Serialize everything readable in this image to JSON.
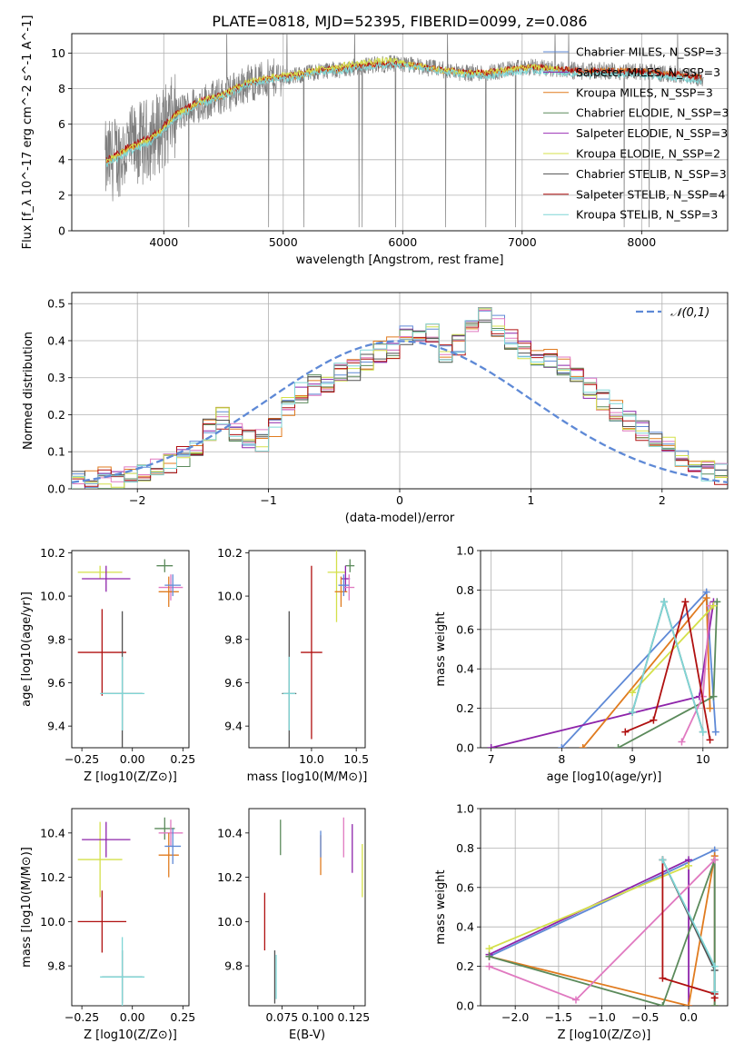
{
  "figure_title": "PLATE=0818, MJD=52395, FIBERID=0099, z=0.086",
  "legend": [
    {
      "name": "Chabrier MILES, N_SSP=3",
      "color": "#5e89d6"
    },
    {
      "name": "Salpeter MILES, N_SSP=3",
      "color": "#8e24aa"
    },
    {
      "name": "Kroupa MILES, N_SSP=3",
      "color": "#e07b1f"
    },
    {
      "name": "Chabrier ELODIE, N_SSP=3",
      "color": "#5b8a5b"
    },
    {
      "name": "Salpeter ELODIE, N_SSP=3",
      "color": "#9b30b4"
    },
    {
      "name": "Kroupa ELODIE, N_SSP=2",
      "color": "#d4e04a"
    },
    {
      "name": "Chabrier STELIB, N_SSP=3",
      "color": "#505050"
    },
    {
      "name": "Salpeter STELIB, N_SSP=4",
      "color": "#b01010"
    },
    {
      "name": "Kroupa STELIB, N_SSP=3",
      "color": "#7fd6d6"
    }
  ],
  "chart_data": [
    {
      "id": "spectrum",
      "type": "line",
      "xlabel": "wavelength [Angstrom, rest frame]",
      "ylabel": "Flux [f_λ 10^-17 erg cm^-2 s^-1 A^-1]",
      "xlim": [
        3230,
        8720
      ],
      "ylim": [
        0,
        11.1
      ],
      "xticks": [
        4000,
        5000,
        6000,
        7000,
        8000
      ],
      "yticks": [
        0,
        2,
        4,
        6,
        8,
        10
      ],
      "grid": true,
      "legend_position": "right",
      "x_range": [
        3510,
        8520
      ],
      "model_series": [
        {
          "name": "Kroupa MILES, N_SSP=3",
          "color": "#e07b1f",
          "x": [
            3520,
            3700,
            3900,
            4100,
            4300,
            4500,
            4700,
            4900,
            5100,
            5300,
            5500,
            5700,
            5900,
            6100,
            6300,
            6500,
            6700,
            6900,
            7100,
            7300,
            7500,
            7700,
            7900,
            8100,
            8300,
            8500
          ],
          "y": [
            3.8,
            4.6,
            5.2,
            6.5,
            7.2,
            7.6,
            8.3,
            8.6,
            8.7,
            9.0,
            9.1,
            9.3,
            9.4,
            9.3,
            9.1,
            8.9,
            8.9,
            9.1,
            9.2,
            9.1,
            9.0,
            9.0,
            9.0,
            8.9,
            8.8,
            8.6
          ]
        },
        {
          "name": "Salpeter STELIB, N_SSP=4",
          "color": "#b01010",
          "x": [
            3520,
            3700,
            3900,
            4100,
            4300,
            4500,
            4700,
            4900,
            5100,
            5300,
            5500,
            5700,
            5900,
            6100,
            6300,
            6500,
            6700,
            6900,
            7100,
            7300,
            7500,
            7700,
            7900,
            8100,
            8300,
            8500
          ],
          "y": [
            4.0,
            4.7,
            5.3,
            6.6,
            7.3,
            7.7,
            8.3,
            8.6,
            8.8,
            9.0,
            9.2,
            9.3,
            9.4,
            9.3,
            9.1,
            8.9,
            8.9,
            9.1,
            9.2,
            9.1,
            9.0,
            9.0,
            9.0,
            8.9,
            8.8,
            8.6
          ]
        },
        {
          "name": "Kroupa ELODIE, N_SSP=2",
          "color": "#d4e04a",
          "x": [
            3520,
            3700,
            3900,
            4100,
            4300,
            4500,
            4700,
            4900,
            5100,
            5300,
            5500,
            5700,
            5900,
            6100,
            6300,
            6500,
            6700,
            6900,
            7100,
            7300
          ],
          "y": [
            3.9,
            4.6,
            5.2,
            6.5,
            7.3,
            7.7,
            8.4,
            8.7,
            8.8,
            9.1,
            9.3,
            9.5,
            9.6,
            9.3,
            9.1,
            8.9,
            8.9,
            9.1,
            9.2,
            9.1
          ]
        },
        {
          "name": "Kroupa STELIB, N_SSP=3",
          "color": "#7fd6d6",
          "x": [
            3520,
            3700,
            3900,
            4100,
            4300,
            4500,
            4700,
            4900,
            5100,
            5300,
            5500,
            5700,
            5900,
            6100,
            6300,
            6500,
            6700,
            6900,
            7100,
            7300,
            7500,
            7700,
            7900,
            8100,
            8300,
            8500
          ],
          "y": [
            3.7,
            4.4,
            5.0,
            6.3,
            7.1,
            7.5,
            8.2,
            8.5,
            8.6,
            8.9,
            9.0,
            9.2,
            9.3,
            9.2,
            9.0,
            8.8,
            8.7,
            8.9,
            9.0,
            8.9,
            8.8,
            8.8,
            8.8,
            8.7,
            8.6,
            8.4
          ]
        }
      ]
    },
    {
      "id": "residuals",
      "type": "step",
      "xlabel": "(data-model)/error",
      "ylabel": "Normed distribution",
      "xlim": [
        -2.5,
        2.5
      ],
      "ylim": [
        0,
        0.53
      ],
      "xticks": [
        -2,
        -1,
        0,
        1,
        2
      ],
      "yticks": [
        0.0,
        0.1,
        0.2,
        0.3,
        0.4,
        0.5
      ],
      "grid": true,
      "legend_position": "top-right",
      "reference_curve": {
        "name": "𝒩(0,1)",
        "color": "#5e89d6"
      },
      "bin_edges_start": -2.5,
      "bin_width": 0.1,
      "histogram_values": [
        0.02,
        0.02,
        0.03,
        0.03,
        0.04,
        0.05,
        0.06,
        0.07,
        0.09,
        0.12,
        0.16,
        0.19,
        0.15,
        0.14,
        0.13,
        0.17,
        0.22,
        0.26,
        0.28,
        0.29,
        0.31,
        0.32,
        0.35,
        0.37,
        0.38,
        0.41,
        0.4,
        0.42,
        0.37,
        0.39,
        0.43,
        0.46,
        0.44,
        0.4,
        0.38,
        0.36,
        0.35,
        0.33,
        0.3,
        0.27,
        0.24,
        0.21,
        0.18,
        0.16,
        0.13,
        0.11,
        0.09,
        0.07,
        0.05,
        0.04
      ],
      "series": [
        {
          "name": "Chabrier MILES",
          "color": "#5e89d6"
        },
        {
          "name": "Salpeter MILES",
          "color": "#8e24aa"
        },
        {
          "name": "Kroupa MILES",
          "color": "#e07b1f"
        },
        {
          "name": "Chabrier ELODIE",
          "color": "#5b8a5b"
        },
        {
          "name": "Salpeter ELODIE",
          "color": "#e079c0"
        },
        {
          "name": "Kroupa ELODIE",
          "color": "#d4e04a"
        },
        {
          "name": "Chabrier STELIB",
          "color": "#505050"
        },
        {
          "name": "Salpeter STELIB",
          "color": "#b01010"
        },
        {
          "name": "Kroupa STELIB",
          "color": "#7fd6d6"
        }
      ]
    },
    {
      "id": "age-vs-Z",
      "type": "errorbar",
      "xlabel": "Z [log10(Z/Z⊙)]",
      "ylabel": "age [log10(age/yr)]",
      "xlim": [
        -0.3,
        0.28
      ],
      "ylim": [
        9.3,
        10.21
      ],
      "xticks": [
        -0.25,
        0.0,
        0.25
      ],
      "yticks": [
        9.4,
        9.6,
        9.8,
        10.0,
        10.2
      ],
      "points": [
        {
          "x": 0.16,
          "y": 10.14,
          "ex": 0.04,
          "ey": 0.03,
          "color": "#5b8a5b"
        },
        {
          "x": -0.16,
          "y": 10.11,
          "ex": 0.11,
          "ey": 0.03,
          "color": "#d4e04a"
        },
        {
          "x": -0.13,
          "y": 10.08,
          "ex": 0.12,
          "ey": 0.06,
          "color": "#8e24aa"
        },
        {
          "x": 0.19,
          "y": 10.04,
          "ex": 0.06,
          "ey": 0.06,
          "color": "#e079c0"
        },
        {
          "x": 0.18,
          "y": 10.02,
          "ex": 0.05,
          "ey": 0.07,
          "color": "#e07b1f"
        },
        {
          "x": 0.2,
          "y": 10.05,
          "ex": 0.04,
          "ey": 0.05,
          "color": "#5e89d6"
        },
        {
          "x": -0.15,
          "y": 9.74,
          "ex": 0.12,
          "ey": 0.2,
          "color": "#b01010"
        },
        {
          "x": -0.05,
          "y": 9.55,
          "ex": 0.1,
          "ey": 0.38,
          "color": "#505050"
        },
        {
          "x": -0.05,
          "y": 9.55,
          "ex": 0.11,
          "ey": 0.17,
          "color": "#7fd6d6"
        }
      ]
    },
    {
      "id": "age-vs-mass",
      "type": "errorbar",
      "xlabel": "mass [log10(M/M⊙)]",
      "ylabel": "",
      "xlim": [
        9.3,
        10.6
      ],
      "ylim": [
        9.3,
        10.21
      ],
      "xticks": [
        10.0,
        10.5
      ],
      "yticks": [
        9.4,
        9.6,
        9.8,
        10.0,
        10.2
      ],
      "points": [
        {
          "x": 10.43,
          "y": 10.14,
          "ex": 0.05,
          "ey": 0.03,
          "color": "#5b8a5b"
        },
        {
          "x": 10.28,
          "y": 10.11,
          "ex": 0.1,
          "ey": 0.23,
          "color": "#d4e04a"
        },
        {
          "x": 10.38,
          "y": 10.08,
          "ex": 0.05,
          "ey": 0.06,
          "color": "#8e24aa"
        },
        {
          "x": 10.42,
          "y": 10.04,
          "ex": 0.06,
          "ey": 0.06,
          "color": "#e079c0"
        },
        {
          "x": 10.33,
          "y": 10.02,
          "ex": 0.07,
          "ey": 0.07,
          "color": "#e07b1f"
        },
        {
          "x": 10.36,
          "y": 10.05,
          "ex": 0.06,
          "ey": 0.05,
          "color": "#5e89d6"
        },
        {
          "x": 10.0,
          "y": 9.74,
          "ex": 0.12,
          "ey": 0.4,
          "color": "#b01010"
        },
        {
          "x": 9.75,
          "y": 9.55,
          "ex": 0.08,
          "ey": 0.38,
          "color": "#505050"
        },
        {
          "x": 9.75,
          "y": 9.55,
          "ex": 0.07,
          "ey": 0.17,
          "color": "#7fd6d6"
        }
      ]
    },
    {
      "id": "weight-vs-age",
      "type": "line",
      "xlabel": "age [log10(age/yr)]",
      "ylabel": "mass weight",
      "xlim": [
        6.85,
        10.35
      ],
      "ylim": [
        0,
        1.0
      ],
      "xticks": [
        7,
        8,
        9,
        10
      ],
      "yticks": [
        0.0,
        0.2,
        0.4,
        0.6,
        0.8,
        1.0
      ],
      "grid": true,
      "series": [
        {
          "name": "Chabrier MILES",
          "color": "#5e89d6",
          "x": [
            8.0,
            10.05,
            10.18
          ],
          "y": [
            0.0,
            0.79,
            0.08
          ]
        },
        {
          "name": "Salpeter MILES",
          "color": "#8e24aa",
          "x": [
            7.0,
            9.95,
            10.15
          ],
          "y": [
            0.0,
            0.26,
            0.74
          ]
        },
        {
          "name": "Kroupa MILES",
          "color": "#e07b1f",
          "x": [
            8.3,
            10.05,
            10.1
          ],
          "y": [
            0.0,
            0.76,
            0.2
          ]
        },
        {
          "name": "Chabrier ELODIE",
          "color": "#5b8a5b",
          "x": [
            8.8,
            10.15,
            10.2
          ],
          "y": [
            0.0,
            0.26,
            0.74
          ]
        },
        {
          "name": "Salpeter ELODIE",
          "color": "#e079c0",
          "x": [
            9.7,
            10.0,
            10.1
          ],
          "y": [
            0.03,
            0.26,
            0.72
          ]
        },
        {
          "name": "Kroupa ELODIE",
          "color": "#d4e04a",
          "x": [
            9.0,
            10.15
          ],
          "y": [
            0.28,
            0.72
          ]
        },
        {
          "name": "Chabrier STELIB",
          "color": "#505050",
          "x": [
            9.0,
            9.45,
            10.0
          ],
          "y": [
            0.18,
            0.74,
            0.08
          ]
        },
        {
          "name": "Salpeter STELIB",
          "color": "#b01010",
          "x": [
            8.9,
            9.3,
            9.75,
            10.1
          ],
          "y": [
            0.08,
            0.14,
            0.74,
            0.04
          ]
        },
        {
          "name": "Kroupa STELIB",
          "color": "#7fd6d6",
          "x": [
            9.0,
            9.45,
            10.0
          ],
          "y": [
            0.18,
            0.74,
            0.08
          ]
        }
      ]
    },
    {
      "id": "mass-vs-Z",
      "type": "errorbar",
      "xlabel": "Z [log10(Z/Z⊙)]",
      "ylabel": "mass [log10(M/M⊙)]",
      "xlim": [
        -0.3,
        0.28
      ],
      "ylim": [
        9.62,
        10.51
      ],
      "xticks": [
        -0.25,
        0.0,
        0.25
      ],
      "yticks": [
        9.8,
        10.0,
        10.2,
        10.4
      ],
      "points": [
        {
          "x": 0.16,
          "y": 10.42,
          "ex": 0.05,
          "ey": 0.05,
          "color": "#5b8a5b"
        },
        {
          "x": -0.16,
          "y": 10.28,
          "ex": 0.11,
          "ey": 0.17,
          "color": "#d4e04a"
        },
        {
          "x": -0.13,
          "y": 10.37,
          "ex": 0.12,
          "ey": 0.08,
          "color": "#8e24aa"
        },
        {
          "x": 0.19,
          "y": 10.4,
          "ex": 0.06,
          "ey": 0.06,
          "color": "#e079c0"
        },
        {
          "x": 0.18,
          "y": 10.3,
          "ex": 0.05,
          "ey": 0.1,
          "color": "#e07b1f"
        },
        {
          "x": 0.2,
          "y": 10.34,
          "ex": 0.04,
          "ey": 0.08,
          "color": "#5e89d6"
        },
        {
          "x": -0.15,
          "y": 10.0,
          "ex": 0.12,
          "ey": 0.14,
          "color": "#b01010"
        },
        {
          "x": -0.05,
          "y": 9.75,
          "ex": 0.1,
          "ey": 0.12,
          "color": "#505050"
        },
        {
          "x": -0.05,
          "y": 9.75,
          "ex": 0.11,
          "ey": 0.18,
          "color": "#7fd6d6"
        }
      ]
    },
    {
      "id": "mass-vs-EBV",
      "type": "errorbar",
      "xlabel": "E(B-V)",
      "ylabel": "",
      "xlim": [
        0.052,
        0.133
      ],
      "ylim": [
        9.62,
        10.51
      ],
      "xticks": [
        0.075,
        0.1,
        0.125
      ],
      "xtick_labels": [
        "0.075",
        "0.100",
        "0.125"
      ],
      "yticks": [
        9.8,
        10.0,
        10.2,
        10.4
      ],
      "points": [
        {
          "x": 0.074,
          "y": 10.38,
          "ex": 0,
          "ey": 0.08,
          "color": "#5b8a5b"
        },
        {
          "x": 0.131,
          "y": 10.23,
          "ex": 0,
          "ey": 0.12,
          "color": "#d4e04a"
        },
        {
          "x": 0.124,
          "y": 10.33,
          "ex": 0,
          "ey": 0.11,
          "color": "#8e24aa"
        },
        {
          "x": 0.118,
          "y": 10.38,
          "ex": 0,
          "ey": 0.09,
          "color": "#e079c0"
        },
        {
          "x": 0.102,
          "y": 10.3,
          "ex": 0,
          "ey": 0.09,
          "color": "#e07b1f"
        },
        {
          "x": 0.102,
          "y": 10.35,
          "ex": 0,
          "ey": 0.06,
          "color": "#5e89d6"
        },
        {
          "x": 0.063,
          "y": 10.0,
          "ex": 0,
          "ey": 0.13,
          "color": "#b01010"
        },
        {
          "x": 0.07,
          "y": 9.75,
          "ex": 0,
          "ey": 0.12,
          "color": "#505050"
        },
        {
          "x": 0.071,
          "y": 9.75,
          "ex": 0,
          "ey": 0.1,
          "color": "#7fd6d6"
        }
      ]
    },
    {
      "id": "weight-vs-Z",
      "type": "line",
      "xlabel": "Z [log10(Z/Z⊙)]",
      "ylabel": "mass weight",
      "xlim": [
        -2.4,
        0.45
      ],
      "ylim": [
        0,
        1.0
      ],
      "xticks": [
        -2.0,
        -1.5,
        -1.0,
        -0.5,
        0.0
      ],
      "yticks": [
        0.0,
        0.2,
        0.4,
        0.6,
        0.8,
        1.0
      ],
      "grid": true,
      "series": [
        {
          "name": "Chabrier MILES",
          "color": "#5e89d6",
          "x": [
            -2.3,
            0.3,
            0.3
          ],
          "y": [
            0.25,
            0.79,
            0.0
          ]
        },
        {
          "name": "Salpeter MILES",
          "color": "#8e24aa",
          "x": [
            -2.3,
            0.0,
            0.0
          ],
          "y": [
            0.26,
            0.74,
            0.0
          ]
        },
        {
          "name": "Kroupa MILES",
          "color": "#e07b1f",
          "x": [
            -2.3,
            0.0,
            0.3,
            0.3
          ],
          "y": [
            0.25,
            0.0,
            0.76,
            0.0
          ]
        },
        {
          "name": "Chabrier ELODIE",
          "color": "#5b8a5b",
          "x": [
            -2.3,
            -0.3,
            0.3,
            0.3
          ],
          "y": [
            0.25,
            0.0,
            0.74,
            0.0
          ]
        },
        {
          "name": "Salpeter ELODIE",
          "color": "#e079c0",
          "x": [
            -2.3,
            -1.3,
            0.3
          ],
          "y": [
            0.2,
            0.03,
            0.74
          ]
        },
        {
          "name": "Kroupa ELODIE",
          "color": "#d4e04a",
          "x": [
            -2.3,
            0.0
          ],
          "y": [
            0.29,
            0.71
          ]
        },
        {
          "name": "Chabrier STELIB",
          "color": "#505050",
          "x": [
            -0.3,
            0.3,
            0.3
          ],
          "y": [
            0.74,
            0.18,
            0.07
          ]
        },
        {
          "name": "Salpeter STELIB",
          "color": "#b01010",
          "x": [
            -0.3,
            -0.3,
            0.3,
            0.3
          ],
          "y": [
            0.74,
            0.14,
            0.06,
            0.04
          ]
        },
        {
          "name": "Kroupa STELIB",
          "color": "#7fd6d6",
          "x": [
            -0.3,
            0.3,
            0.3
          ],
          "y": [
            0.74,
            0.2,
            0.07
          ]
        }
      ]
    }
  ]
}
